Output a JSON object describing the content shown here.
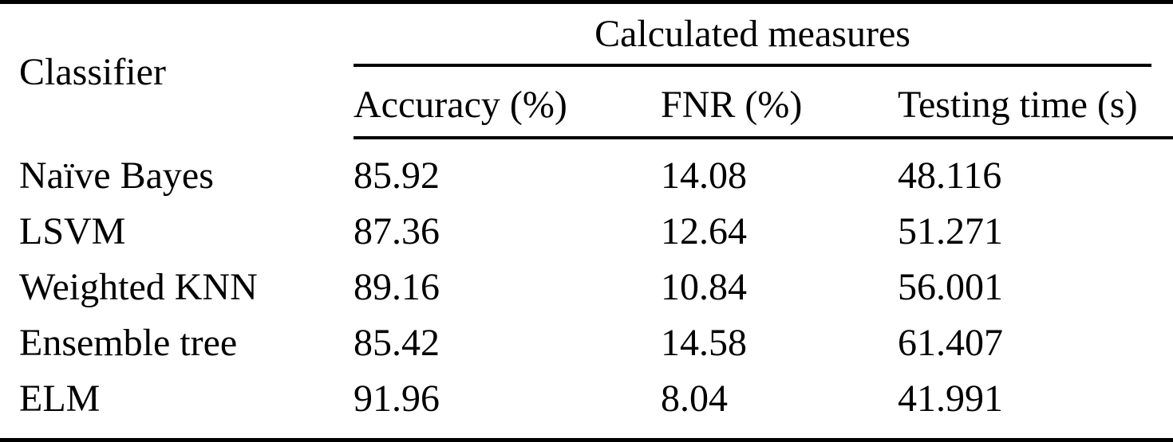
{
  "table": {
    "corner_header": "Classifier",
    "group_header": "Calculated measures",
    "columns": [
      "Accuracy (%)",
      "FNR (%)",
      "Testing time (s)"
    ],
    "rows": [
      {
        "classifier": "Naïve Bayes",
        "accuracy": "85.92",
        "fnr": "14.08",
        "testing_time": "48.116"
      },
      {
        "classifier": "LSVM",
        "accuracy": "87.36",
        "fnr": "12.64",
        "testing_time": "51.271"
      },
      {
        "classifier": "Weighted KNN",
        "accuracy": "89.16",
        "fnr": "10.84",
        "testing_time": "56.001"
      },
      {
        "classifier": "Ensemble tree",
        "accuracy": "85.42",
        "fnr": "14.58",
        "testing_time": "61.407"
      },
      {
        "classifier": "ELM",
        "accuracy": "91.96",
        "fnr": "8.04",
        "testing_time": "41.991"
      }
    ],
    "emphasized_row": "ELM"
  },
  "colors": {
    "text": "#000000",
    "background": "#ffffff",
    "rule": "#000000"
  }
}
